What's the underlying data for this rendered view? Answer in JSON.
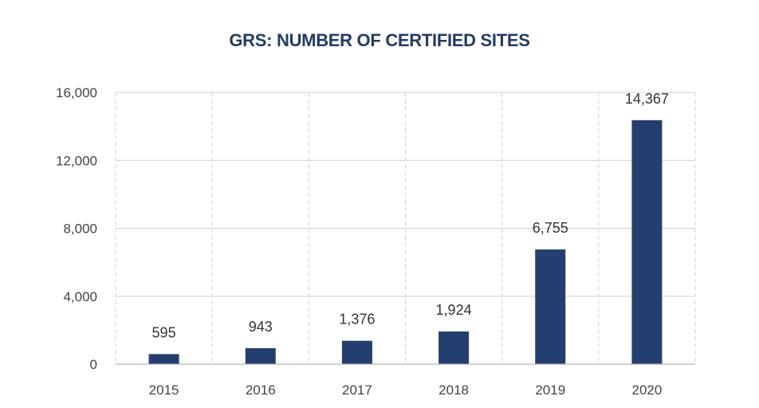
{
  "chart_data": {
    "type": "bar",
    "title": "GRS: NUMBER OF CERTIFIED SITES",
    "categories": [
      "2015",
      "2016",
      "2017",
      "2018",
      "2019",
      "2020"
    ],
    "values": [
      595,
      943,
      1376,
      1924,
      6755,
      14367
    ],
    "value_labels": [
      "595",
      "943",
      "1,376",
      "1,924",
      "6,755",
      "14,367"
    ],
    "xlabel": "",
    "ylabel": "",
    "ylim": [
      0,
      16000
    ],
    "yticks": [
      0,
      4000,
      8000,
      12000,
      16000
    ],
    "ytick_labels": [
      "0",
      "4,000",
      "8,000",
      "12,000",
      "16,000"
    ],
    "grid": "dashed",
    "bar_color": "#243f6f",
    "title_color": "#243b63"
  }
}
